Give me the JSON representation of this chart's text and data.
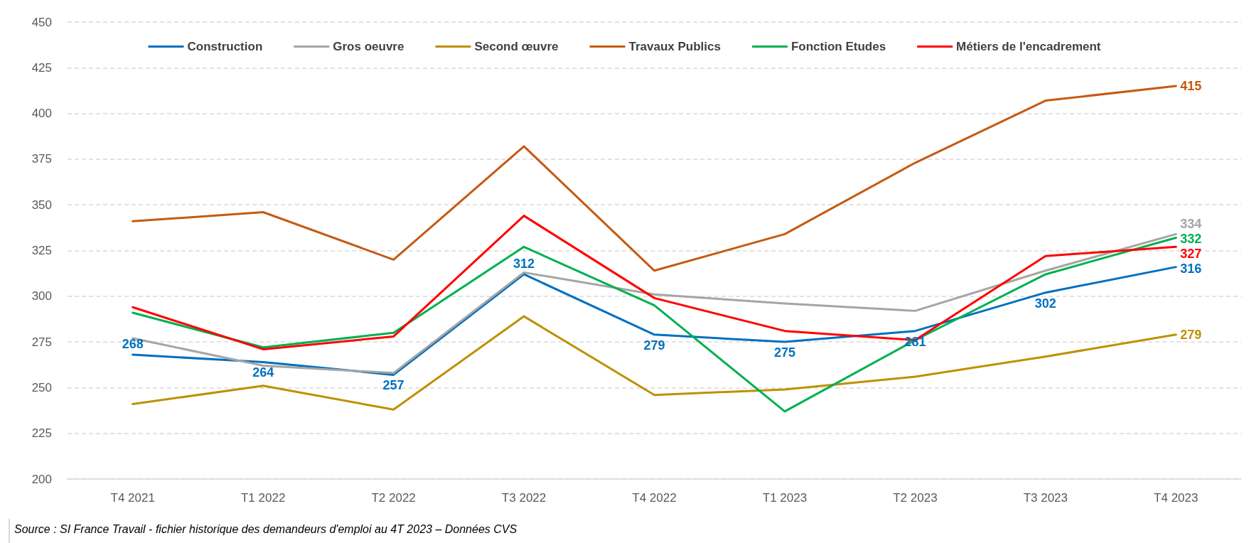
{
  "chart_data": {
    "type": "line",
    "categories": [
      "T4 2021",
      "T1 2022",
      "T2 2022",
      "T3 2022",
      "T4 2022",
      "T1 2023",
      "T2 2023",
      "T3 2023",
      "T4 2023"
    ],
    "series": [
      {
        "name": "Construction",
        "color": "#0070c0",
        "values": [
          268,
          264,
          257,
          312,
          279,
          275,
          281,
          302,
          316
        ],
        "value_labels": [
          "268",
          "264",
          "257",
          "312",
          "279",
          "275",
          "281",
          "302",
          "316"
        ]
      },
      {
        "name": "Gros oeuvre",
        "color": "#a5a5a5",
        "values": [
          277,
          262,
          258,
          313,
          301,
          296,
          292,
          314,
          334
        ],
        "value_labels": [
          null,
          null,
          null,
          null,
          null,
          null,
          null,
          null,
          "334"
        ]
      },
      {
        "name": "Second œuvre",
        "color": "#bf9000",
        "values": [
          241,
          251,
          238,
          289,
          246,
          249,
          256,
          267,
          279
        ],
        "value_labels": [
          null,
          null,
          null,
          null,
          null,
          null,
          null,
          null,
          "279"
        ]
      },
      {
        "name": "Travaux Publics",
        "color": "#c55a11",
        "values": [
          341,
          346,
          320,
          382,
          314,
          334,
          373,
          407,
          415
        ],
        "value_labels": [
          null,
          null,
          null,
          null,
          null,
          null,
          null,
          null,
          "415"
        ]
      },
      {
        "name": "Fonction Etudes",
        "color": "#00b050",
        "values": [
          291,
          272,
          280,
          327,
          295,
          237,
          276,
          312,
          332
        ],
        "value_labels": [
          null,
          null,
          null,
          null,
          null,
          null,
          null,
          null,
          "332"
        ]
      },
      {
        "name": "Métiers de l'encadrement",
        "color": "#ff0000",
        "values": [
          294,
          271,
          278,
          344,
          299,
          281,
          276,
          322,
          327
        ],
        "value_labels": [
          null,
          null,
          null,
          null,
          null,
          null,
          null,
          null,
          "327"
        ]
      }
    ],
    "ylim": [
      200,
      450
    ],
    "yticks": [
      200,
      225,
      250,
      275,
      300,
      325,
      350,
      375,
      400,
      425,
      450
    ],
    "grid": "y",
    "legend": "top",
    "marker": "none",
    "line_style": "solid",
    "annotations": [
      "Source : SI France Travail - fichier historique des demandeurs d'emploi au 4T 2023 – Données CVS"
    ]
  }
}
